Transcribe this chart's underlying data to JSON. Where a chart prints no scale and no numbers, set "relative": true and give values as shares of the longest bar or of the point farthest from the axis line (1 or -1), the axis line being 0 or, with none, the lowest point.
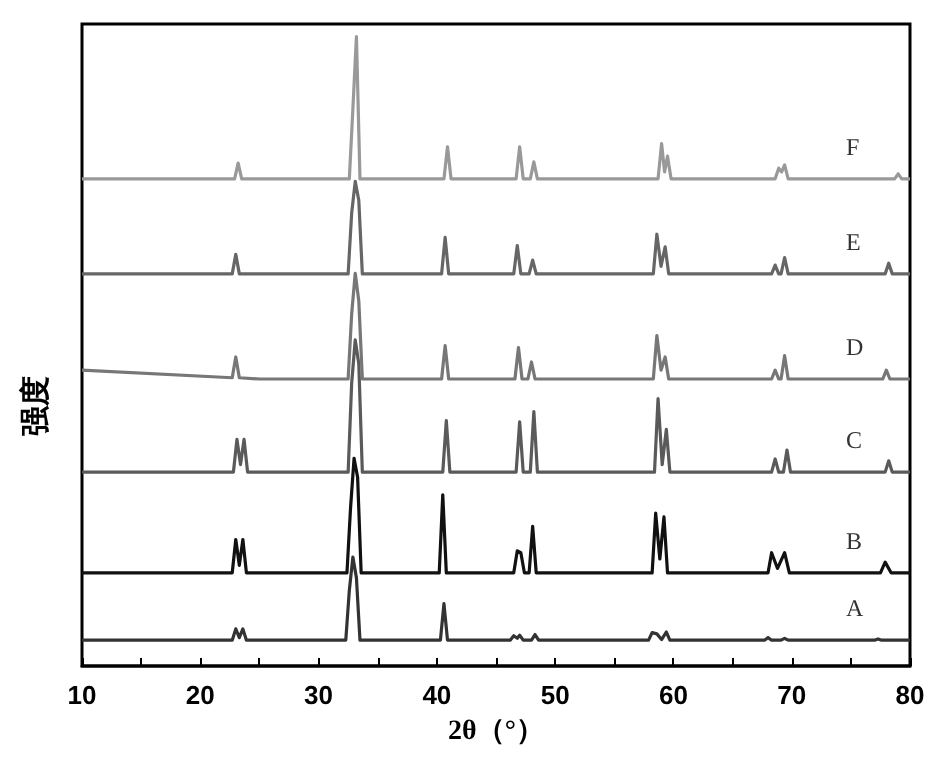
{
  "chart_data": {
    "type": "line",
    "relative": true,
    "xlabel": "2θ（°）",
    "ylabel": "强度",
    "xlim": [
      10,
      80
    ],
    "xticks": [
      10,
      20,
      30,
      40,
      50,
      60,
      70,
      80
    ],
    "grid": false,
    "legend": false,
    "marker": "none",
    "line_style": "solid",
    "series": [
      {
        "name": "A",
        "color": "#333333",
        "x": [
          10,
          22.7,
          23.0,
          23.3,
          23.6,
          23.9,
          32.3,
          32.6,
          32.9,
          33.2,
          33.5,
          40.3,
          40.6,
          40.9,
          46.2,
          46.5,
          46.8,
          47.0,
          47.3,
          48.0,
          48.3,
          48.6,
          57.9,
          58.2,
          58.6,
          59.0,
          59.4,
          59.7,
          67.7,
          68.0,
          68.3,
          69.1,
          69.4,
          69.7,
          77.0,
          77.3,
          77.6,
          80
        ],
        "values": [
          0.041,
          0.041,
          0.059,
          0.045,
          0.059,
          0.041,
          0.041,
          0.12,
          0.173,
          0.14,
          0.041,
          0.041,
          0.099,
          0.041,
          0.041,
          0.048,
          0.044,
          0.049,
          0.041,
          0.041,
          0.05,
          0.041,
          0.041,
          0.053,
          0.051,
          0.042,
          0.054,
          0.041,
          0.041,
          0.045,
          0.041,
          0.041,
          0.044,
          0.041,
          0.041,
          0.043,
          0.041,
          0.041
        ]
      },
      {
        "name": "B",
        "color": "#111111",
        "x": [
          10,
          22.7,
          23.0,
          23.3,
          23.6,
          23.9,
          32.4,
          32.7,
          33.0,
          33.3,
          33.6,
          40.2,
          40.5,
          40.8,
          46.5,
          46.8,
          47.1,
          47.4,
          47.8,
          48.1,
          48.4,
          58.2,
          58.5,
          58.85,
          59.2,
          59.5,
          68.0,
          68.3,
          68.8,
          69.4,
          69.8,
          77.5,
          77.9,
          78.4,
          80
        ],
        "values": [
          0.148,
          0.148,
          0.201,
          0.16,
          0.201,
          0.148,
          0.148,
          0.25,
          0.33,
          0.3,
          0.148,
          0.148,
          0.272,
          0.148,
          0.148,
          0.183,
          0.18,
          0.148,
          0.148,
          0.222,
          0.148,
          0.148,
          0.243,
          0.17,
          0.237,
          0.148,
          0.148,
          0.18,
          0.155,
          0.18,
          0.148,
          0.148,
          0.165,
          0.148,
          0.148
        ]
      },
      {
        "name": "C",
        "color": "#5a5a5a",
        "x": [
          10,
          22.8,
          23.1,
          23.4,
          23.7,
          24.0,
          32.5,
          32.8,
          33.1,
          33.4,
          33.7,
          40.5,
          40.8,
          41.1,
          46.7,
          47.0,
          47.3,
          47.9,
          48.2,
          48.5,
          58.4,
          58.7,
          59.05,
          59.4,
          59.7,
          68.3,
          68.6,
          68.9,
          69.3,
          69.6,
          69.9,
          77.9,
          78.2,
          78.5,
          80
        ],
        "values": [
          0.308,
          0.308,
          0.36,
          0.32,
          0.36,
          0.308,
          0.308,
          0.45,
          0.518,
          0.48,
          0.308,
          0.308,
          0.39,
          0.308,
          0.308,
          0.388,
          0.308,
          0.308,
          0.404,
          0.308,
          0.308,
          0.425,
          0.32,
          0.376,
          0.308,
          0.308,
          0.329,
          0.308,
          0.308,
          0.343,
          0.308,
          0.308,
          0.326,
          0.308,
          0.308
        ]
      },
      {
        "name": "D",
        "color": "#777777",
        "x": [
          10,
          22.7,
          23.0,
          23.3,
          25,
          32.5,
          32.8,
          33.1,
          33.4,
          33.7,
          40.4,
          40.7,
          41.0,
          46.6,
          46.9,
          47.2,
          47.7,
          48.0,
          48.3,
          58.3,
          58.6,
          58.95,
          59.3,
          59.6,
          68.3,
          68.6,
          68.9,
          69.1,
          69.4,
          69.7,
          77.7,
          78.0,
          78.3,
          80
        ],
        "values": [
          0.47,
          0.458,
          0.491,
          0.458,
          0.456,
          0.456,
          0.56,
          0.624,
          0.58,
          0.456,
          0.456,
          0.509,
          0.456,
          0.456,
          0.506,
          0.456,
          0.456,
          0.483,
          0.456,
          0.456,
          0.525,
          0.47,
          0.491,
          0.456,
          0.456,
          0.47,
          0.456,
          0.456,
          0.493,
          0.456,
          0.456,
          0.47,
          0.456,
          0.456
        ]
      },
      {
        "name": "E",
        "color": "#666666",
        "x": [
          10,
          22.7,
          23.0,
          23.3,
          32.5,
          32.8,
          33.1,
          33.4,
          33.7,
          40.4,
          40.7,
          41.0,
          46.5,
          46.8,
          47.1,
          47.8,
          48.1,
          48.4,
          58.3,
          58.6,
          58.95,
          59.3,
          59.6,
          68.3,
          68.6,
          68.9,
          69.1,
          69.4,
          69.7,
          77.9,
          78.2,
          78.5,
          80
        ],
        "values": [
          0.623,
          0.623,
          0.654,
          0.623,
          0.623,
          0.72,
          0.77,
          0.74,
          0.623,
          0.623,
          0.681,
          0.623,
          0.623,
          0.668,
          0.623,
          0.623,
          0.645,
          0.623,
          0.623,
          0.686,
          0.635,
          0.666,
          0.623,
          0.623,
          0.637,
          0.623,
          0.623,
          0.649,
          0.623,
          0.623,
          0.64,
          0.623,
          0.623
        ]
      },
      {
        "name": "F",
        "color": "#999999",
        "x": [
          10,
          22.9,
          23.2,
          23.5,
          32.6,
          32.9,
          33.2,
          33.5,
          40.6,
          40.9,
          41.2,
          46.7,
          47.0,
          47.3,
          47.9,
          48.2,
          48.5,
          58.7,
          59.0,
          59.25,
          59.5,
          59.8,
          68.6,
          68.9,
          69.15,
          69.4,
          69.7,
          78.7,
          79.0,
          79.3,
          80
        ],
        "values": [
          0.774,
          0.774,
          0.799,
          0.774,
          0.774,
          0.885,
          1.0,
          0.774,
          0.774,
          0.825,
          0.774,
          0.774,
          0.825,
          0.774,
          0.774,
          0.801,
          0.774,
          0.774,
          0.83,
          0.785,
          0.81,
          0.774,
          0.774,
          0.791,
          0.785,
          0.796,
          0.774,
          0.774,
          0.782,
          0.774,
          0.774
        ]
      }
    ]
  }
}
